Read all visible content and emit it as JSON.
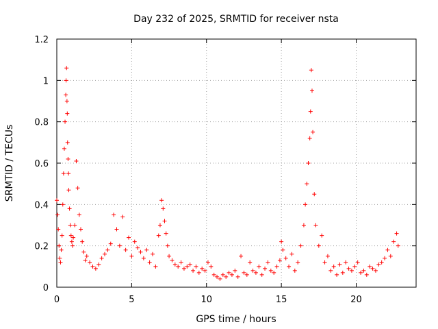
{
  "chart_data": {
    "type": "scatter",
    "title": "Day 232 of 2025, SRMTID for receiver nsta",
    "xlabel": "GPS time / hours",
    "ylabel": "SRMTID / TECUs",
    "xlim": [
      0,
      24
    ],
    "ylim": [
      0,
      1.2
    ],
    "xticks": [
      0,
      5,
      10,
      15,
      20
    ],
    "xtick_labels": [
      "0",
      "5",
      "10",
      "15",
      "20"
    ],
    "yticks": [
      0,
      0.2,
      0.4,
      0.6,
      0.8,
      1,
      1.2
    ],
    "ytick_labels": [
      "0",
      "0.2",
      "0.4",
      "0.6",
      "0.8",
      "1",
      "1.2"
    ],
    "grid": true,
    "marker": "+",
    "color": "#ff0000",
    "series": [
      {
        "name": "SRMTID",
        "x": [
          0.0,
          0.05,
          0.1,
          0.15,
          0.2,
          0.25,
          0.3,
          0.35,
          0.4,
          0.45,
          0.5,
          0.55,
          0.6,
          0.62,
          0.65,
          0.68,
          0.7,
          0.72,
          0.75,
          0.78,
          0.8,
          0.85,
          0.9,
          0.95,
          1.0,
          1.05,
          1.1,
          1.2,
          1.3,
          1.4,
          1.5,
          1.6,
          1.7,
          1.8,
          1.9,
          2.0,
          2.2,
          2.4,
          2.6,
          2.8,
          3.0,
          3.2,
          3.4,
          3.6,
          3.8,
          4.0,
          4.2,
          4.4,
          4.6,
          4.8,
          5.0,
          5.2,
          5.4,
          5.6,
          5.8,
          6.0,
          6.2,
          6.4,
          6.6,
          6.8,
          6.9,
          7.0,
          7.1,
          7.2,
          7.3,
          7.4,
          7.5,
          7.7,
          7.9,
          8.1,
          8.3,
          8.5,
          8.7,
          8.9,
          9.1,
          9.3,
          9.5,
          9.7,
          9.9,
          10.1,
          10.3,
          10.5,
          10.7,
          10.9,
          11.1,
          11.3,
          11.5,
          11.7,
          11.9,
          12.1,
          12.3,
          12.5,
          12.7,
          12.9,
          13.1,
          13.3,
          13.5,
          13.7,
          13.9,
          14.1,
          14.3,
          14.5,
          14.7,
          14.9,
          15.0,
          15.1,
          15.3,
          15.5,
          15.7,
          15.9,
          16.1,
          16.3,
          16.5,
          16.6,
          16.7,
          16.8,
          16.9,
          16.95,
          17.0,
          17.05,
          17.1,
          17.2,
          17.3,
          17.5,
          17.7,
          17.9,
          18.1,
          18.3,
          18.5,
          18.7,
          18.9,
          19.1,
          19.3,
          19.5,
          19.7,
          19.9,
          20.1,
          20.3,
          20.5,
          20.7,
          20.9,
          21.1,
          21.3,
          21.5,
          21.7,
          21.9,
          22.1,
          22.3,
          22.5,
          22.7,
          22.8
        ],
        "y": [
          0.42,
          0.35,
          0.28,
          0.2,
          0.14,
          0.12,
          0.18,
          0.25,
          0.4,
          0.55,
          0.67,
          0.8,
          0.93,
          1.0,
          1.06,
          0.9,
          0.84,
          0.7,
          0.62,
          0.55,
          0.47,
          0.38,
          0.3,
          0.25,
          0.22,
          0.2,
          0.24,
          0.3,
          0.61,
          0.48,
          0.35,
          0.28,
          0.22,
          0.17,
          0.13,
          0.15,
          0.12,
          0.1,
          0.09,
          0.11,
          0.14,
          0.16,
          0.18,
          0.21,
          0.35,
          0.28,
          0.2,
          0.34,
          0.18,
          0.24,
          0.15,
          0.22,
          0.19,
          0.17,
          0.14,
          0.18,
          0.12,
          0.16,
          0.1,
          0.25,
          0.3,
          0.42,
          0.38,
          0.32,
          0.26,
          0.2,
          0.15,
          0.13,
          0.11,
          0.1,
          0.12,
          0.09,
          0.1,
          0.11,
          0.08,
          0.1,
          0.07,
          0.09,
          0.08,
          0.12,
          0.1,
          0.06,
          0.05,
          0.04,
          0.06,
          0.05,
          0.07,
          0.06,
          0.08,
          0.05,
          0.15,
          0.07,
          0.06,
          0.12,
          0.08,
          0.07,
          0.1,
          0.06,
          0.09,
          0.12,
          0.08,
          0.07,
          0.1,
          0.13,
          0.22,
          0.18,
          0.14,
          0.1,
          0.16,
          0.08,
          0.12,
          0.2,
          0.3,
          0.4,
          0.5,
          0.6,
          0.72,
          0.85,
          1.05,
          0.95,
          0.75,
          0.45,
          0.3,
          0.2,
          0.25,
          0.12,
          0.15,
          0.08,
          0.1,
          0.06,
          0.11,
          0.07,
          0.12,
          0.09,
          0.08,
          0.1,
          0.12,
          0.07,
          0.08,
          0.06,
          0.1,
          0.09,
          0.08,
          0.11,
          0.12,
          0.14,
          0.18,
          0.15,
          0.22,
          0.26,
          0.2
        ]
      }
    ]
  }
}
